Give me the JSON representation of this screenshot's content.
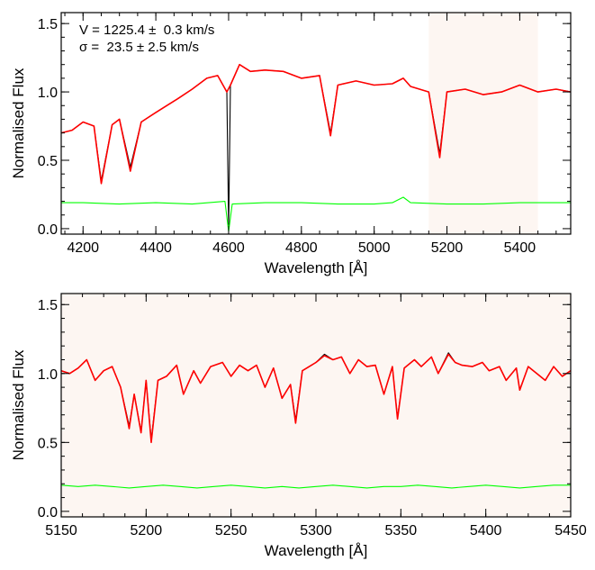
{
  "chart_data": [
    {
      "type": "line",
      "xlabel": "Wavelength [Å]",
      "ylabel": "Normalised Flux",
      "xlim": [
        4140,
        5540
      ],
      "ylim": [
        -0.04,
        1.58
      ],
      "xticks": [
        "4200",
        "4400",
        "4600",
        "4800",
        "5000",
        "5200",
        "5400"
      ],
      "xtick_values": [
        4200,
        4400,
        4600,
        4800,
        5000,
        5200,
        5400
      ],
      "yticks": [
        "0.0",
        "0.5",
        "1.0",
        "1.5"
      ],
      "ytick_values": [
        0.0,
        0.5,
        1.0,
        1.5
      ],
      "shaded_region": [
        5150,
        5450
      ],
      "annotations": [
        {
          "text": "V = 1225.4 ±  0.3 km/s"
        },
        {
          "text": "σ =  23.5 ± 2.5 km/s"
        }
      ],
      "series": [
        {
          "role": "observed spectrum",
          "color": "#000000",
          "x": [
            4140,
            4170,
            4200,
            4230,
            4250,
            4280,
            4300,
            4330,
            4360,
            4400,
            4430,
            4460,
            4500,
            4540,
            4570,
            4595,
            4600,
            4605,
            4630,
            4660,
            4700,
            4750,
            4800,
            4850,
            4880,
            4900,
            4950,
            5000,
            5050,
            5080,
            5100,
            5150,
            5170,
            5180,
            5200,
            5250,
            5300,
            5350,
            5400,
            5450,
            5500,
            5540
          ],
          "y": [
            0.7,
            0.72,
            0.78,
            0.75,
            0.35,
            0.76,
            0.8,
            0.45,
            0.78,
            0.85,
            0.9,
            0.95,
            1.02,
            1.1,
            1.12,
            1.0,
            0.0,
            1.05,
            1.2,
            1.15,
            1.16,
            1.15,
            1.1,
            1.12,
            0.7,
            1.05,
            1.08,
            1.05,
            1.06,
            1.1,
            1.04,
            1.0,
            0.7,
            0.55,
            1.0,
            1.02,
            0.98,
            1.0,
            1.05,
            1.0,
            1.02,
            1.0
          ]
        },
        {
          "role": "fitted model",
          "color": "#ff0000",
          "x": [
            4140,
            4170,
            4200,
            4230,
            4250,
            4280,
            4300,
            4330,
            4360,
            4400,
            4430,
            4460,
            4500,
            4540,
            4570,
            4595,
            4605,
            4630,
            4660,
            4700,
            4750,
            4800,
            4850,
            4880,
            4900,
            4950,
            5000,
            5050,
            5080,
            5100,
            5150,
            5170,
            5180,
            5200,
            5250,
            5300,
            5350,
            5400,
            5450,
            5500,
            5540
          ],
          "y": [
            0.7,
            0.72,
            0.78,
            0.75,
            0.33,
            0.76,
            0.8,
            0.42,
            0.78,
            0.85,
            0.9,
            0.95,
            1.02,
            1.1,
            1.12,
            1.0,
            1.05,
            1.2,
            1.15,
            1.16,
            1.15,
            1.1,
            1.12,
            0.68,
            1.05,
            1.08,
            1.05,
            1.06,
            1.1,
            1.04,
            1.0,
            0.68,
            0.52,
            1.0,
            1.02,
            0.98,
            1.0,
            1.05,
            1.0,
            1.02,
            1.0
          ]
        },
        {
          "role": "residuals (offset)",
          "color": "#00ff00",
          "x": [
            4140,
            4200,
            4300,
            4400,
            4500,
            4590,
            4600,
            4610,
            4700,
            4800,
            4900,
            5000,
            5050,
            5080,
            5100,
            5200,
            5300,
            5400,
            5540
          ],
          "y": [
            0.19,
            0.19,
            0.18,
            0.19,
            0.18,
            0.2,
            -0.02,
            0.18,
            0.19,
            0.19,
            0.18,
            0.18,
            0.19,
            0.23,
            0.19,
            0.18,
            0.18,
            0.19,
            0.19
          ]
        }
      ],
      "grid": false
    },
    {
      "type": "line",
      "xlabel": "Wavelength [Å]",
      "ylabel": "Normalised Flux",
      "xlim": [
        5150,
        5450
      ],
      "ylim": [
        -0.04,
        1.58
      ],
      "xticks": [
        "5150",
        "5200",
        "5250",
        "5300",
        "5350",
        "5400",
        "5450"
      ],
      "xtick_values": [
        5150,
        5200,
        5250,
        5300,
        5350,
        5400,
        5450
      ],
      "yticks": [
        "0.0",
        "0.5",
        "1.0",
        "1.5"
      ],
      "ytick_values": [
        0.0,
        0.5,
        1.0,
        1.5
      ],
      "shaded_region": [
        5150,
        5450
      ],
      "series": [
        {
          "role": "observed spectrum",
          "color": "#000000",
          "x": [
            5150,
            5155,
            5160,
            5165,
            5170,
            5175,
            5180,
            5185,
            5190,
            5193,
            5197,
            5200,
            5203,
            5207,
            5212,
            5218,
            5222,
            5228,
            5232,
            5238,
            5245,
            5250,
            5255,
            5260,
            5265,
            5270,
            5275,
            5280,
            5285,
            5288,
            5292,
            5296,
            5300,
            5305,
            5310,
            5315,
            5320,
            5325,
            5330,
            5335,
            5340,
            5345,
            5348,
            5352,
            5358,
            5362,
            5368,
            5372,
            5378,
            5382,
            5386,
            5392,
            5398,
            5402,
            5408,
            5412,
            5418,
            5420,
            5425,
            5430,
            5435,
            5440,
            5445,
            5450
          ],
          "y": [
            1.02,
            1.0,
            1.04,
            1.1,
            0.95,
            1.02,
            1.05,
            0.9,
            0.62,
            0.85,
            0.58,
            0.95,
            0.52,
            0.95,
            0.98,
            1.06,
            0.85,
            1.02,
            0.93,
            1.05,
            1.08,
            0.98,
            1.06,
            1.02,
            1.06,
            0.9,
            1.04,
            0.82,
            0.92,
            0.66,
            1.02,
            1.05,
            1.08,
            1.14,
            1.1,
            1.12,
            1.0,
            1.1,
            1.05,
            1.06,
            0.85,
            1.05,
            0.68,
            1.04,
            1.1,
            1.05,
            1.12,
            1.0,
            1.15,
            1.08,
            1.06,
            1.05,
            1.08,
            1.02,
            1.05,
            0.95,
            1.04,
            0.88,
            1.05,
            1.0,
            0.95,
            1.05,
            0.98,
            1.02
          ]
        },
        {
          "role": "fitted model",
          "color": "#ff0000",
          "x": [
            5150,
            5155,
            5160,
            5165,
            5170,
            5175,
            5180,
            5185,
            5190,
            5193,
            5197,
            5200,
            5203,
            5207,
            5212,
            5218,
            5222,
            5228,
            5232,
            5238,
            5245,
            5250,
            5255,
            5260,
            5265,
            5270,
            5275,
            5280,
            5285,
            5288,
            5292,
            5296,
            5300,
            5305,
            5310,
            5315,
            5320,
            5325,
            5330,
            5335,
            5340,
            5345,
            5348,
            5352,
            5358,
            5362,
            5368,
            5372,
            5378,
            5382,
            5386,
            5392,
            5398,
            5402,
            5408,
            5412,
            5418,
            5420,
            5425,
            5430,
            5435,
            5440,
            5445,
            5450
          ],
          "y": [
            1.02,
            1.0,
            1.04,
            1.1,
            0.95,
            1.02,
            1.05,
            0.9,
            0.6,
            0.85,
            0.57,
            0.95,
            0.5,
            0.95,
            0.98,
            1.06,
            0.85,
            1.02,
            0.93,
            1.05,
            1.08,
            0.98,
            1.06,
            1.02,
            1.06,
            0.9,
            1.04,
            0.82,
            0.92,
            0.64,
            1.02,
            1.05,
            1.08,
            1.13,
            1.1,
            1.12,
            1.0,
            1.1,
            1.05,
            1.06,
            0.85,
            1.05,
            0.67,
            1.04,
            1.1,
            1.05,
            1.12,
            1.0,
            1.14,
            1.08,
            1.06,
            1.05,
            1.08,
            1.02,
            1.05,
            0.95,
            1.04,
            0.88,
            1.05,
            1.0,
            0.95,
            1.05,
            0.98,
            1.02
          ]
        },
        {
          "role": "residuals (offset)",
          "color": "#00ff00",
          "x": [
            5150,
            5160,
            5170,
            5180,
            5190,
            5200,
            5210,
            5220,
            5230,
            5240,
            5250,
            5260,
            5270,
            5280,
            5290,
            5300,
            5310,
            5320,
            5330,
            5340,
            5350,
            5360,
            5370,
            5380,
            5390,
            5400,
            5410,
            5420,
            5430,
            5440,
            5450
          ],
          "y": [
            0.19,
            0.18,
            0.19,
            0.18,
            0.17,
            0.18,
            0.19,
            0.18,
            0.17,
            0.18,
            0.19,
            0.18,
            0.17,
            0.18,
            0.17,
            0.18,
            0.19,
            0.18,
            0.17,
            0.18,
            0.18,
            0.19,
            0.18,
            0.17,
            0.18,
            0.19,
            0.18,
            0.17,
            0.18,
            0.19,
            0.19
          ]
        }
      ],
      "grid": false
    }
  ],
  "colors": {
    "shade": "#fdf6f2",
    "observed": "#000000",
    "model": "#ff0000",
    "residual": "#00ff00"
  }
}
